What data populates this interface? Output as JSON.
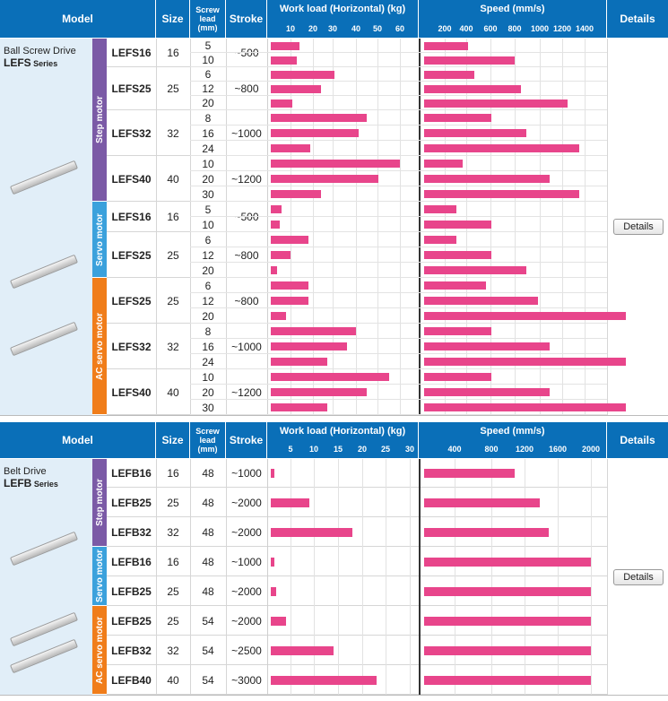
{
  "headers": {
    "model": "Model",
    "size": "Size",
    "screw_lead": "Screw lead (mm)",
    "stroke": "Stroke",
    "work_load": "Work load (Horizontal) (kg)",
    "speed": "Speed (mm/s)",
    "details": "Details"
  },
  "colors": {
    "header": "#0a6fb8",
    "step": "#7b5aa6",
    "servo": "#3ba1dc",
    "ac_servo": "#f07d1a",
    "bar": "#e8458b",
    "side": "#e1eef8"
  },
  "tables": [
    {
      "series_line1": "Ball Screw Drive",
      "series_code": "LEFS",
      "series_word": "Series",
      "details_label": "Details",
      "workload_ticks": [
        10,
        20,
        30,
        40,
        50,
        60
      ],
      "speed_ticks": [
        200,
        400,
        600,
        800,
        1000,
        1200,
        1400
      ],
      "motors": [
        {
          "label": "Step motor",
          "color": "step",
          "models": [
            {
              "name": "LEFS16",
              "size": "16",
              "stroke": "~500",
              "rows": [
                {
                  "lead": "5",
                  "load": 14,
                  "speed": 400
                },
                {
                  "lead": "10",
                  "load": 13,
                  "speed": 800
                }
              ]
            },
            {
              "name": "LEFS25",
              "size": "25",
              "stroke": "~800",
              "rows": [
                {
                  "lead": "6",
                  "load": 30,
                  "speed": 450
                },
                {
                  "lead": "12",
                  "load": 24,
                  "speed": 850
                },
                {
                  "lead": "20",
                  "load": 11,
                  "speed": 1250
                }
              ]
            },
            {
              "name": "LEFS32",
              "size": "32",
              "stroke": "~1000",
              "rows": [
                {
                  "lead": "8",
                  "load": 45,
                  "speed": 600
                },
                {
                  "lead": "16",
                  "load": 41,
                  "speed": 900
                },
                {
                  "lead": "24",
                  "load": 19,
                  "speed": 1350
                }
              ]
            },
            {
              "name": "LEFS40",
              "size": "40",
              "stroke": "~1200",
              "rows": [
                {
                  "lead": "10",
                  "load": 60,
                  "speed": 350
                },
                {
                  "lead": "20",
                  "load": 50,
                  "speed": 1100
                },
                {
                  "lead": "30",
                  "load": 24,
                  "speed": 1350
                }
              ]
            }
          ]
        },
        {
          "label": "Servo motor",
          "color": "servo",
          "models": [
            {
              "name": "LEFS16",
              "size": "16",
              "stroke": "~500",
              "rows": [
                {
                  "lead": "5",
                  "load": 6,
                  "speed": 300
                },
                {
                  "lead": "10",
                  "load": 5,
                  "speed": 600
                }
              ]
            },
            {
              "name": "LEFS25",
              "size": "25",
              "stroke": "~800",
              "rows": [
                {
                  "lead": "6",
                  "load": 18,
                  "speed": 300
                },
                {
                  "lead": "12",
                  "load": 10,
                  "speed": 600
                },
                {
                  "lead": "20",
                  "load": 4,
                  "speed": 900
                }
              ]
            }
          ]
        },
        {
          "label": "AC servo motor",
          "color": "ac_servo",
          "models": [
            {
              "name": "LEFS25",
              "size": "25",
              "stroke": "~800",
              "rows": [
                {
                  "lead": "6",
                  "load": 18,
                  "speed": 550
                },
                {
                  "lead": "12",
                  "load": 18,
                  "speed": 1000
                },
                {
                  "lead": "20",
                  "load": 8,
                  "speed": 1750
                }
              ]
            },
            {
              "name": "LEFS32",
              "size": "32",
              "stroke": "~1000",
              "rows": [
                {
                  "lead": "8",
                  "load": 40,
                  "speed": 600
                },
                {
                  "lead": "16",
                  "load": 36,
                  "speed": 1100
                },
                {
                  "lead": "24",
                  "load": 27,
                  "speed": 1750
                }
              ]
            },
            {
              "name": "LEFS40",
              "size": "40",
              "stroke": "~1200",
              "rows": [
                {
                  "lead": "10",
                  "load": 55,
                  "speed": 600
                },
                {
                  "lead": "20",
                  "load": 45,
                  "speed": 1100
                },
                {
                  "lead": "30",
                  "load": 27,
                  "speed": 1750
                }
              ]
            }
          ]
        }
      ]
    },
    {
      "series_line1": "Belt Drive",
      "series_code": "LEFB",
      "series_word": "Series",
      "details_label": "Details",
      "workload_ticks": [
        5,
        10,
        15,
        20,
        25,
        30
      ],
      "speed_ticks": [
        400,
        800,
        1200,
        1600,
        2000
      ],
      "motors": [
        {
          "label": "Step motor",
          "color": "step",
          "models": [
            {
              "name": "LEFB16",
              "size": "16",
              "stroke": "~1000",
              "rows": [
                {
                  "lead": "48",
                  "load": 1,
                  "speed": 1100
                }
              ]
            },
            {
              "name": "LEFB25",
              "size": "25",
              "stroke": "~2000",
              "rows": [
                {
                  "lead": "48",
                  "load": 9,
                  "speed": 1400
                }
              ]
            },
            {
              "name": "LEFB32",
              "size": "32",
              "stroke": "~2000",
              "rows": [
                {
                  "lead": "48",
                  "load": 18,
                  "speed": 1500
                }
              ]
            }
          ]
        },
        {
          "label": "Servo motor",
          "color": "servo",
          "models": [
            {
              "name": "LEFB16",
              "size": "16",
              "stroke": "~1000",
              "rows": [
                {
                  "lead": "48",
                  "load": 1,
                  "speed": 2000
                }
              ]
            },
            {
              "name": "LEFB25",
              "size": "25",
              "stroke": "~2000",
              "rows": [
                {
                  "lead": "48",
                  "load": 2,
                  "speed": 2000
                }
              ]
            }
          ]
        },
        {
          "label": "AC servo motor",
          "color": "ac_servo",
          "models": [
            {
              "name": "LEFB25",
              "size": "25",
              "stroke": "~2000",
              "rows": [
                {
                  "lead": "54",
                  "load": 4,
                  "speed": 2000
                }
              ]
            },
            {
              "name": "LEFB32",
              "size": "32",
              "stroke": "~2500",
              "rows": [
                {
                  "lead": "54",
                  "load": 14,
                  "speed": 2000
                }
              ]
            },
            {
              "name": "LEFB40",
              "size": "40",
              "stroke": "~3000",
              "rows": [
                {
                  "lead": "54",
                  "load": 23,
                  "speed": 2000
                }
              ]
            }
          ]
        }
      ]
    }
  ],
  "chart_data": [
    {
      "type": "bar",
      "title": "Work load (Horizontal) (kg)",
      "series": "LEFS",
      "categories": [
        "LEFS16-5 step",
        "LEFS16-10 step",
        "LEFS25-6 step",
        "LEFS25-12 step",
        "LEFS25-20 step",
        "LEFS32-8 step",
        "LEFS32-16 step",
        "LEFS32-24 step",
        "LEFS40-10 step",
        "LEFS40-20 step",
        "LEFS40-30 step",
        "LEFS16-5 servo",
        "LEFS16-10 servo",
        "LEFS25-6 servo",
        "LEFS25-12 servo",
        "LEFS25-20 servo",
        "LEFS25-6 ac",
        "LEFS25-12 ac",
        "LEFS25-20 ac",
        "LEFS32-8 ac",
        "LEFS32-16 ac",
        "LEFS32-24 ac",
        "LEFS40-10 ac",
        "LEFS40-20 ac",
        "LEFS40-30 ac"
      ],
      "values": [
        14,
        13,
        30,
        24,
        11,
        45,
        41,
        19,
        60,
        50,
        24,
        6,
        5,
        18,
        10,
        4,
        18,
        18,
        8,
        40,
        36,
        27,
        55,
        45,
        27
      ]
    },
    {
      "type": "bar",
      "title": "Speed (mm/s)",
      "series": "LEFS",
      "values": [
        400,
        800,
        450,
        850,
        1250,
        600,
        900,
        1350,
        350,
        1100,
        1350,
        300,
        600,
        300,
        600,
        900,
        550,
        1000,
        1750,
        600,
        1100,
        1750,
        600,
        1100,
        1750
      ]
    },
    {
      "type": "bar",
      "title": "Work load (Horizontal) (kg)",
      "series": "LEFB",
      "values": [
        1,
        9,
        18,
        1,
        2,
        4,
        14,
        23
      ]
    },
    {
      "type": "bar",
      "title": "Speed (mm/s)",
      "series": "LEFB",
      "values": [
        1100,
        1400,
        1500,
        2000,
        2000,
        2000,
        2000,
        2000
      ]
    }
  ]
}
